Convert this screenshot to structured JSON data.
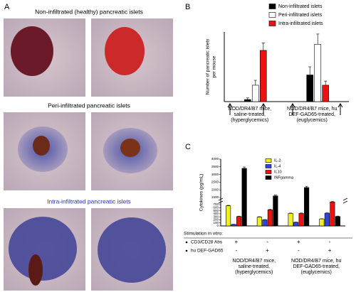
{
  "panel_labels": [
    "A",
    "B",
    "C"
  ],
  "micrograph_titles": [
    "Non-infiltrated (healthy) pancreatic islets",
    "Peri-infiltrated pancreatic islets",
    "Intra-infiltrated pancreatic islets"
  ],
  "chart_data": [
    {
      "type": "bar",
      "ylabel": [
        "Number of pancreatic islets",
        "per mouse"
      ],
      "categories": [
        "NOD/DR4/B7 mice, saline-treated, (hyperglycemics)",
        "NOD/DR4/B7 mice, hu DEF-GAD65-treated, (euglycemics)"
      ],
      "series": [
        {
          "name": "Non-infiltrated islets",
          "color": "#000000",
          "values": [
            0.5,
            6.5
          ],
          "errors": [
            0.4,
            2
          ]
        },
        {
          "name": "Peri-infiltrated islets",
          "color": "#ffffff",
          "values": [
            4,
            14
          ],
          "errors": [
            1.2,
            2.5
          ]
        },
        {
          "name": "Intra-infiltrated islets",
          "color": "#ee1111",
          "values": [
            12.5,
            4
          ],
          "errors": [
            1.8,
            1
          ]
        }
      ],
      "ylim": [
        0,
        17
      ]
    },
    {
      "type": "bar",
      "ylabel": "Cytokines (pg/mL)",
      "categories": [
        null,
        null,
        null,
        null
      ],
      "groups": [
        "NOD/DR4/B7 mice, saline-treated, (hyperglycemics)",
        "NOD/DR4/B7 mice, hu DEF-GAD65-treated, (euglycemics)"
      ],
      "series": [
        {
          "name": "IL-2",
          "color": "#eeee22",
          "values": [
            660,
            290,
            410,
            230
          ],
          "errors": [
            15,
            12,
            12,
            10
          ]
        },
        {
          "name": "IL-4",
          "color": "#3344dd",
          "values": [
            50,
            200,
            120,
            420
          ],
          "errors": [
            5,
            10,
            8,
            12
          ]
        },
        {
          "name": "IL10",
          "color": "#ee1111",
          "values": [
            310,
            530,
            410,
            1000
          ],
          "errors": [
            10,
            15,
            15,
            80
          ]
        },
        {
          "name": "INFgamma",
          "color": "#000000",
          "values": [
            3400,
            1600,
            2150,
            310
          ],
          "errors": [
            90,
            60,
            80,
            12
          ]
        }
      ],
      "ylim": [
        0,
        4000
      ],
      "axis_break": [
        700,
        1500
      ],
      "yticks": [
        0,
        100,
        200,
        300,
        400,
        500,
        600,
        700,
        1500,
        2000,
        2500,
        3000,
        3500,
        4000
      ],
      "stimulation": {
        "title": "Stimulation in vitro:",
        "rows": [
          {
            "name": "CD3/CD28 Abs",
            "marks": [
              "+",
              "-",
              "+",
              "-"
            ]
          },
          {
            "name": "hu DEF-GAD65",
            "marks": [
              "-",
              "+",
              "-",
              "+"
            ]
          }
        ]
      }
    }
  ]
}
